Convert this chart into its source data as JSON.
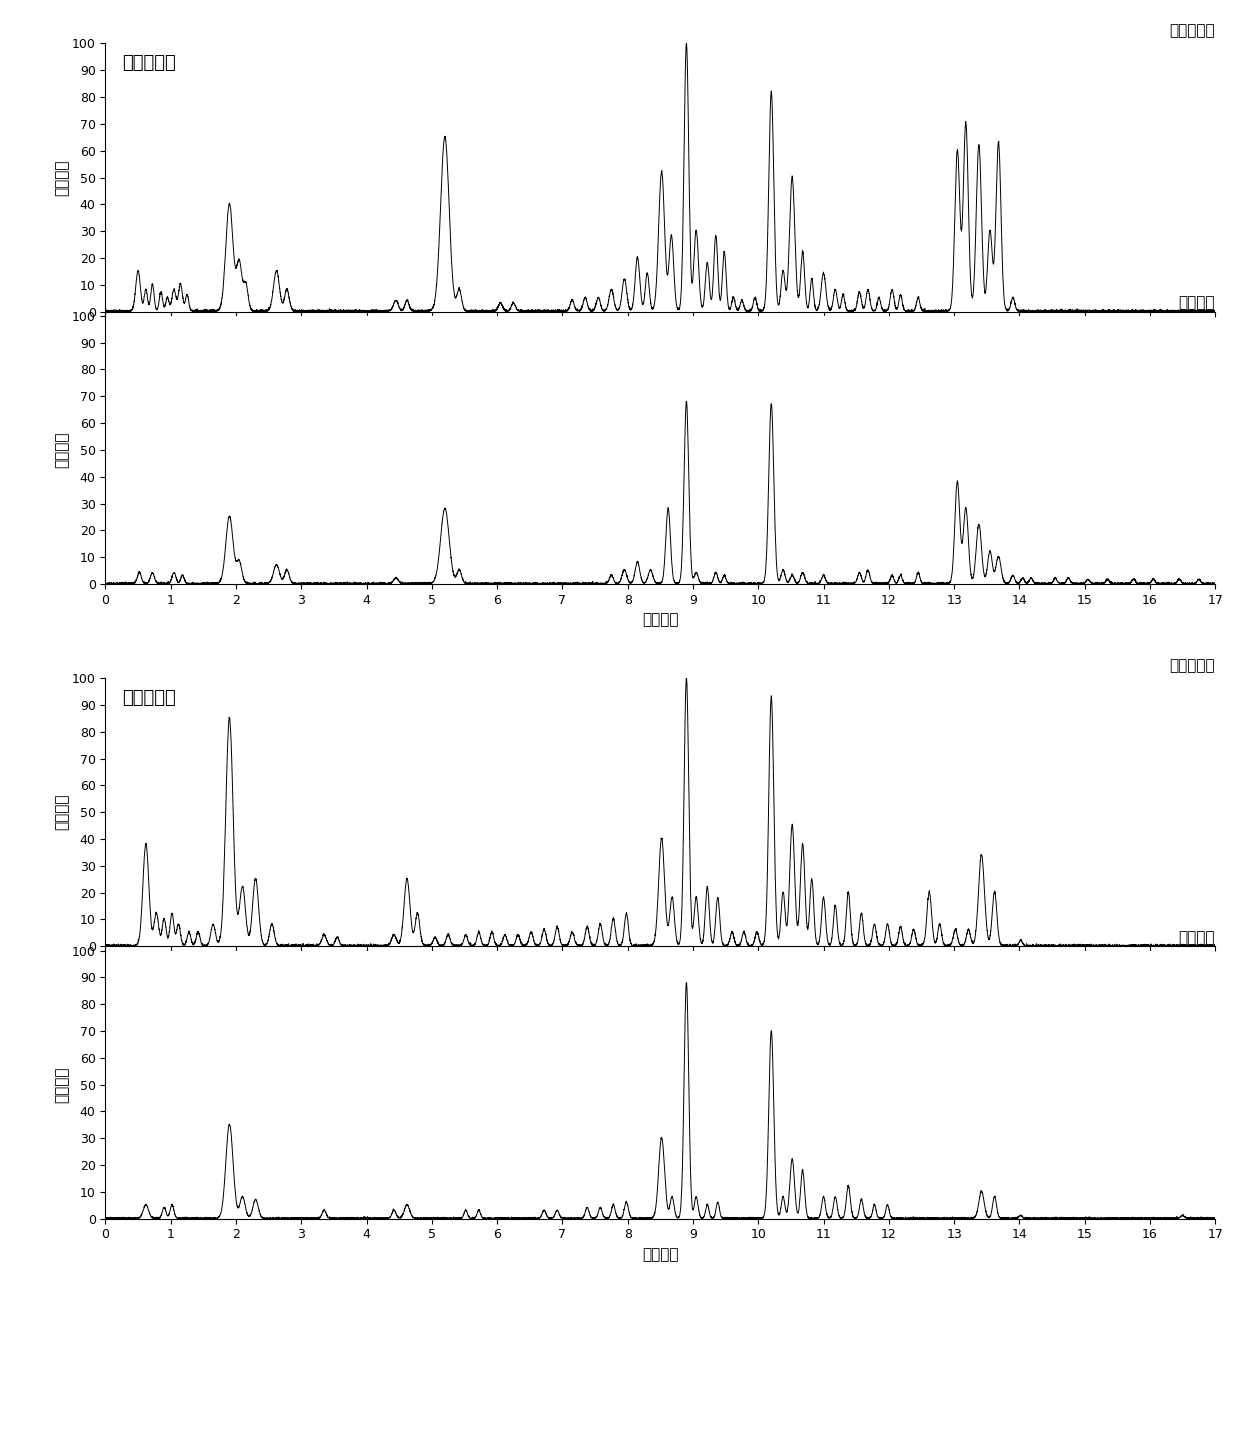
{
  "title_pos": "正离子模式",
  "title_neg": "负离子模式",
  "label_patient": "慢阻肺患者",
  "label_healthy": "健康对照",
  "ylabel": "相对丰度",
  "xlabel": "保留时间",
  "xlim": [
    0,
    17
  ],
  "ylim": [
    0,
    100
  ],
  "line_color": "#000000",
  "line_width": 0.7,
  "bg_color": "#ffffff",
  "font_size_title": 13,
  "font_size_label": 11,
  "font_size_tick": 9
}
